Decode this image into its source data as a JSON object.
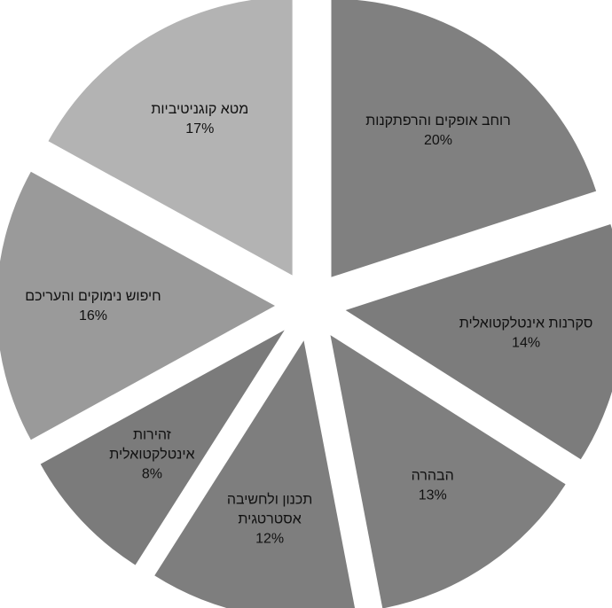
{
  "chart_data": {
    "type": "pie",
    "exploded": true,
    "slices": [
      {
        "label": [
          "רוחב אופקים והרפתקנות"
        ],
        "value": 20,
        "pct_label": "20%",
        "color": "#808080"
      },
      {
        "label": [
          "סקרנות אינטלקטואלית"
        ],
        "value": 14,
        "pct_label": "14%",
        "color": "#7c7c7c"
      },
      {
        "label": [
          "הבהרה"
        ],
        "value": 13,
        "pct_label": "13%",
        "color": "#7f7f7f"
      },
      {
        "label": [
          "תכנון ולחשיבה",
          "אסטרטגית"
        ],
        "value": 12,
        "pct_label": "12%",
        "color": "#7e7e7e"
      },
      {
        "label": [
          "זהירות",
          "אינטלקטואלית"
        ],
        "value": 8,
        "pct_label": "8%",
        "color": "#7b7b7b"
      },
      {
        "label": [
          "חיפוש נימוקים והעריכם"
        ],
        "value": 16,
        "pct_label": "16%",
        "color": "#9a9a9a"
      },
      {
        "label": [
          "מטא קוגניטיביות"
        ],
        "value": 17,
        "pct_label": "17%",
        "color": "#b3b3b3"
      }
    ]
  }
}
